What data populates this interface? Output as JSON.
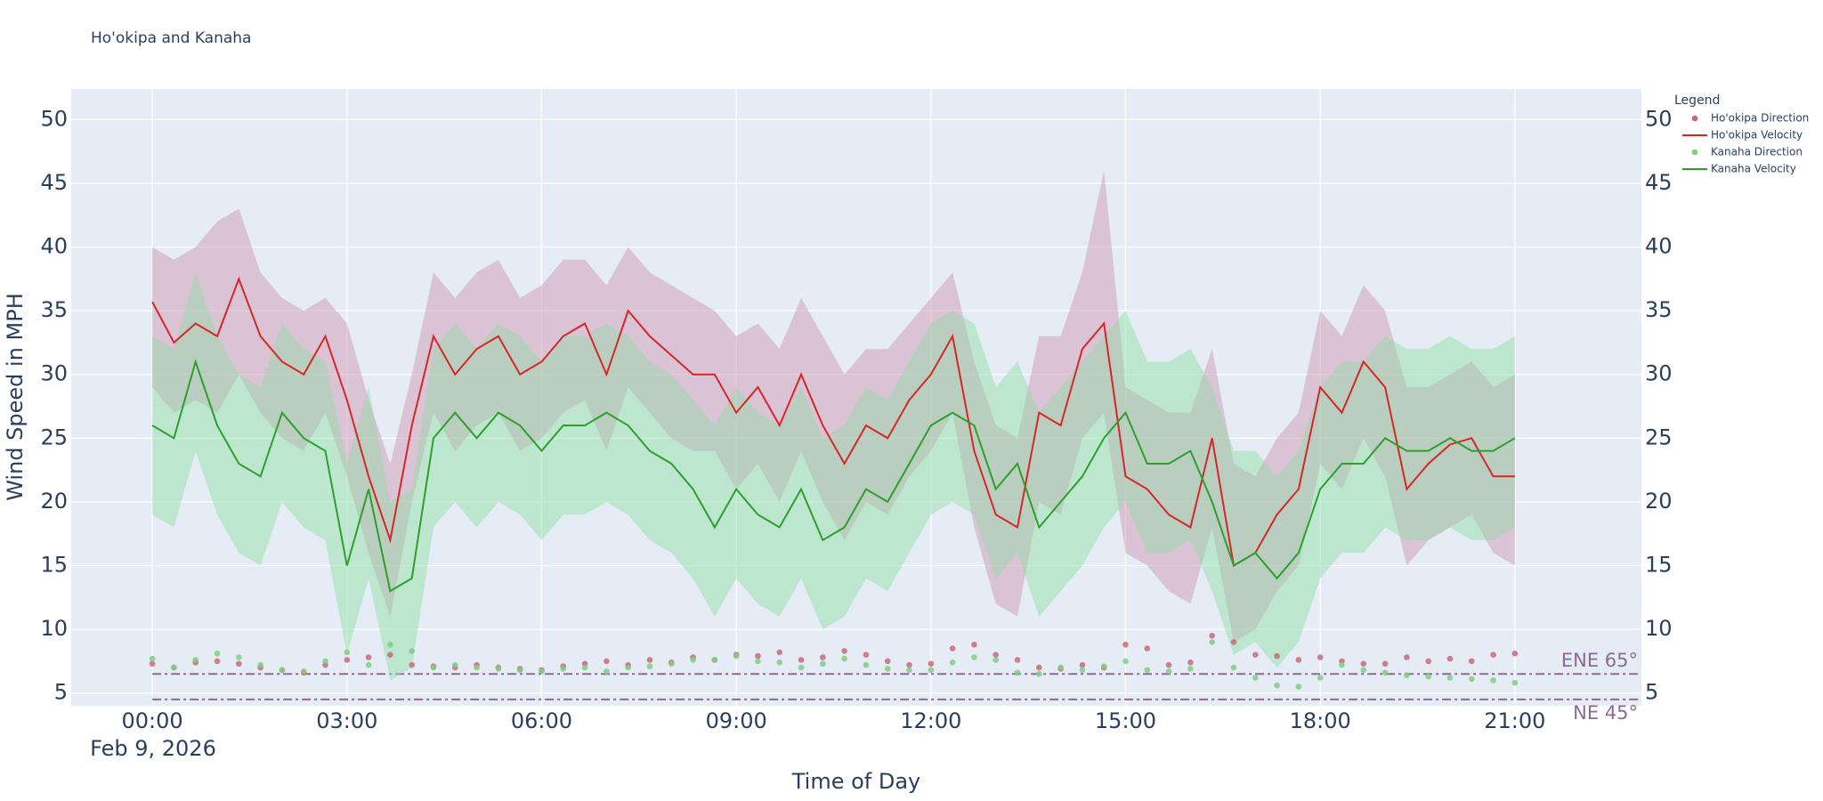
{
  "chart_data": {
    "type": "line",
    "title": "Ho'okipa and Kanaha",
    "y_label": "Wind Speed in MPH",
    "x_label": "Time of Day",
    "x_date_label": "Feb 9, 2026",
    "legend_title": "Legend",
    "legend_position": "right",
    "grid": true,
    "x": [
      0,
      20,
      40,
      60,
      80,
      100,
      120,
      140,
      160,
      180,
      200,
      220,
      240,
      260,
      280,
      300,
      320,
      340,
      360,
      380,
      400,
      420,
      440,
      460,
      480,
      500,
      520,
      540,
      560,
      580,
      600,
      620,
      640,
      660,
      680,
      700,
      720,
      740,
      760,
      780,
      800,
      820,
      840,
      860,
      880,
      900,
      920,
      940,
      960,
      980,
      1000,
      1020,
      1040,
      1060,
      1080,
      1100,
      1120,
      1140,
      1160,
      1180,
      1200,
      1220,
      1240,
      1260
    ],
    "xlim": [
      -75,
      1377
    ],
    "xticks": [
      {
        "value": 0,
        "label": "00:00"
      },
      {
        "value": 180,
        "label": "03:00"
      },
      {
        "value": 360,
        "label": "06:00"
      },
      {
        "value": 540,
        "label": "09:00"
      },
      {
        "value": 720,
        "label": "12:00"
      },
      {
        "value": 900,
        "label": "15:00"
      },
      {
        "value": 1080,
        "label": "18:00"
      },
      {
        "value": 1260,
        "label": "21:00"
      }
    ],
    "ylim": [
      4,
      52.4
    ],
    "yticks": [
      5,
      10,
      15,
      20,
      25,
      30,
      35,
      40,
      45,
      50
    ],
    "y2lim": [
      4,
      52.4
    ],
    "y2ticks": [
      5,
      10,
      15,
      20,
      25,
      30,
      35,
      40,
      45,
      50
    ],
    "reference_lines": [
      {
        "value": 6.5,
        "label": "ENE 65°",
        "color": "#8e6a92"
      },
      {
        "value": 4.5,
        "label": "NE 45°",
        "color": "#8e6a92"
      }
    ],
    "series": [
      {
        "name": "Ho'okipa Direction",
        "mode": "markers",
        "color": "#c96a78",
        "values": [
          7.3,
          7.0,
          7.4,
          7.5,
          7.3,
          7.0,
          6.8,
          6.6,
          7.2,
          7.6,
          7.8,
          8.0,
          7.2,
          7.1,
          7.0,
          7.2,
          7.0,
          6.9,
          6.8,
          7.1,
          7.3,
          7.5,
          7.2,
          7.6,
          7.4,
          7.8,
          7.6,
          8.0,
          7.9,
          8.2,
          7.6,
          7.8,
          8.3,
          8.0,
          7.5,
          7.2,
          7.3,
          8.5,
          8.8,
          8.0,
          7.6,
          7.0,
          6.9,
          7.2,
          7.0,
          8.8,
          8.5,
          7.2,
          7.4,
          9.5,
          9.0,
          8.0,
          7.9,
          7.6,
          7.8,
          7.5,
          7.3,
          7.3,
          7.8,
          7.5,
          7.7,
          7.5,
          8.0,
          8.1
        ]
      },
      {
        "name": "Ho'okipa Velocity",
        "mode": "lines",
        "color": "#d62728",
        "band_color": "rgba(205,150,175,0.28)",
        "values": [
          35.7,
          32.5,
          34,
          33,
          37.5,
          33,
          31,
          30,
          33,
          28,
          22,
          17,
          26,
          33,
          30,
          32,
          33,
          30,
          31,
          33,
          34,
          30,
          35,
          33,
          31.5,
          30,
          30,
          27,
          29,
          26,
          30,
          26,
          23,
          26,
          25,
          28,
          30,
          33,
          24,
          19,
          18,
          27,
          26,
          32,
          34,
          22,
          21,
          19,
          18,
          25,
          15,
          16,
          19,
          21,
          29,
          27,
          31,
          29,
          21,
          23,
          24.5,
          25,
          22,
          22
        ],
        "band_high": [
          40,
          39,
          40,
          42,
          43,
          38,
          36,
          35,
          36,
          34,
          28,
          23,
          30,
          38,
          36,
          38,
          39,
          36,
          37,
          39,
          39,
          37,
          40,
          38,
          37,
          36,
          35,
          33,
          34,
          32,
          36,
          33,
          30,
          32,
          32,
          34,
          36,
          38,
          31,
          26,
          25,
          33,
          33,
          38,
          46,
          29,
          28,
          27,
          27,
          32,
          23,
          22,
          25,
          27,
          35,
          33,
          37,
          35,
          29,
          29,
          30,
          31,
          29,
          30
        ],
        "band_low": [
          29,
          27,
          28,
          27,
          30,
          27,
          25,
          24,
          27,
          22,
          16,
          11,
          20,
          27,
          24,
          26,
          27,
          24,
          25,
          27,
          28,
          24,
          29,
          27,
          25,
          24,
          24,
          21,
          23,
          20,
          24,
          20,
          17,
          20,
          19,
          22,
          24,
          27,
          18,
          12,
          11,
          20,
          19,
          25,
          27,
          16,
          15,
          13,
          12,
          18,
          9,
          10,
          13,
          15,
          23,
          21,
          25,
          22,
          15,
          17,
          18,
          19,
          16,
          15
        ]
      },
      {
        "name": "Kanaha Direction",
        "mode": "markers",
        "color": "#7fcf7f",
        "values": [
          7.7,
          7.0,
          7.6,
          8.1,
          7.8,
          7.2,
          6.8,
          6.7,
          7.5,
          8.2,
          7.2,
          8.8,
          8.3,
          7.0,
          7.2,
          7.0,
          6.9,
          6.8,
          6.7,
          6.9,
          7.0,
          6.7,
          7.0,
          7.1,
          7.3,
          7.6,
          7.6,
          7.9,
          7.5,
          7.4,
          7.0,
          7.3,
          7.7,
          7.2,
          6.9,
          6.8,
          6.8,
          7.4,
          7.8,
          7.6,
          6.6,
          6.5,
          7.0,
          6.8,
          7.1,
          7.5,
          6.8,
          6.7,
          6.9,
          9.0,
          7.0,
          6.2,
          5.6,
          5.5,
          6.2,
          7.2,
          6.8,
          6.6,
          6.4,
          6.3,
          6.2,
          6.1,
          6.0,
          5.8
        ]
      },
      {
        "name": "Kanaha Velocity",
        "mode": "lines",
        "color": "#2ca02c",
        "band_color": "rgba(150,225,170,0.3)",
        "values": [
          26,
          25,
          31,
          26,
          23,
          22,
          27,
          25,
          24,
          15,
          21,
          13,
          14,
          25,
          27,
          25,
          27,
          26,
          24,
          26,
          26,
          27,
          26,
          24,
          23,
          21,
          18,
          21,
          19,
          18,
          21,
          17,
          18,
          21,
          20,
          23,
          26,
          27,
          26,
          21,
          23,
          18,
          20,
          22,
          25,
          27,
          23,
          23,
          24,
          20,
          15,
          16,
          14,
          16,
          21,
          23,
          23,
          25,
          24,
          24,
          25,
          24,
          24,
          25
        ],
        "band_high": [
          33,
          32,
          38,
          33,
          30,
          29,
          34,
          32,
          31,
          23,
          29,
          20,
          21,
          32,
          34,
          32,
          34,
          33,
          31,
          33,
          33,
          34,
          33,
          31,
          30,
          28,
          26,
          29,
          27,
          26,
          29,
          25,
          26,
          29,
          28,
          31,
          34,
          35,
          34,
          29,
          31,
          27,
          29,
          31,
          33,
          35,
          31,
          31,
          32,
          29,
          24,
          24,
          22,
          24,
          29,
          31,
          31,
          33,
          32,
          32,
          33,
          32,
          32,
          33
        ],
        "band_low": [
          19,
          18,
          24,
          19,
          16,
          15,
          20,
          18,
          17,
          8,
          14,
          6,
          7,
          18,
          20,
          18,
          20,
          19,
          17,
          19,
          19,
          20,
          19,
          17,
          16,
          14,
          11,
          14,
          12,
          11,
          14,
          10,
          11,
          14,
          13,
          16,
          19,
          20,
          19,
          14,
          16,
          11,
          13,
          15,
          18,
          20,
          16,
          16,
          17,
          13,
          8,
          9,
          7,
          9,
          14,
          16,
          16,
          18,
          17,
          17,
          18,
          17,
          17,
          18
        ]
      }
    ]
  }
}
